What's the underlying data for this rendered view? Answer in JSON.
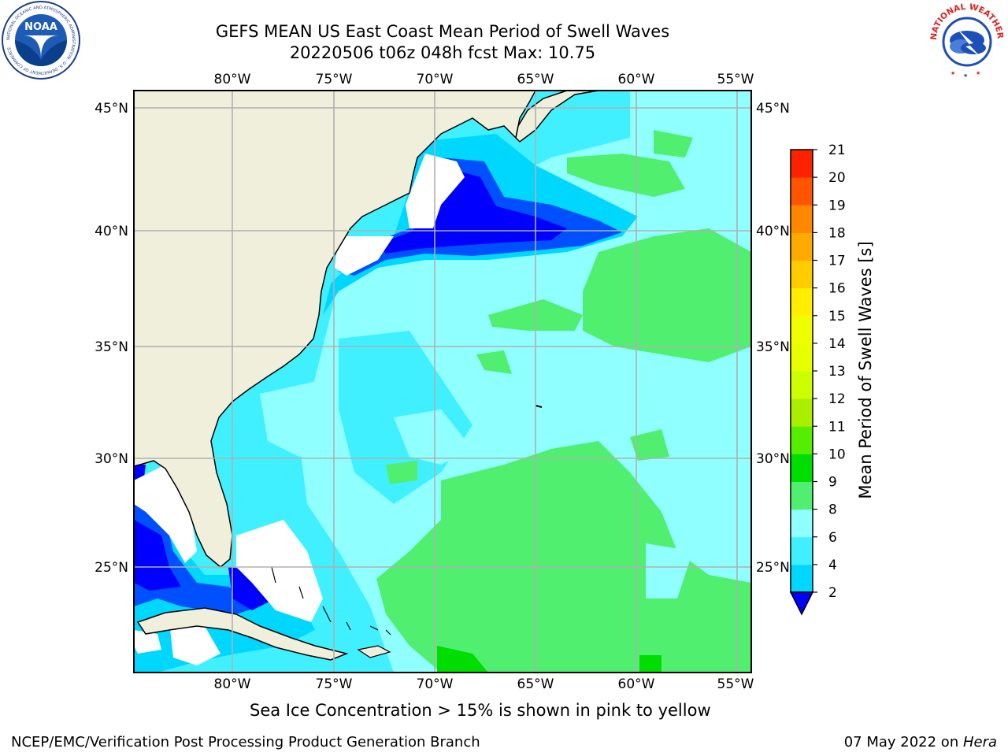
{
  "header": {
    "title_line1": "GEFS MEAN US East Coast Mean Period of Swell Waves",
    "title_line2": "20220506 t06z 048h fcst   Max: 10.75"
  },
  "logos": {
    "left": "NOAA",
    "left_ring": "NATIONAL OCEANIC AND ATMOSPHERIC ADMINISTRATION · U.S. DEPARTMENT OF COMMERCE",
    "right_ring": "NATIONAL WEATHER SERVICE"
  },
  "map": {
    "lon_labels": [
      "80°W",
      "75°W",
      "70°W",
      "65°W",
      "60°W",
      "55°W"
    ],
    "lat_labels": [
      "45°N",
      "40°N",
      "35°N",
      "30°N",
      "25°N"
    ],
    "colors": {
      "land": "#efefdc",
      "nodata": "#ffffff",
      "grid": "#b0b0b0"
    }
  },
  "colorbar": {
    "label": "Mean Period of Swell Waves [s]",
    "ticks": [
      "2",
      "4",
      "6",
      "8",
      "9",
      "10",
      "11",
      "12",
      "13",
      "14",
      "15",
      "16",
      "17",
      "18",
      "19",
      "20",
      "21"
    ],
    "colors": [
      "#0050ff",
      "#00d7ff",
      "#40f0ff",
      "#90ffff",
      "#50ef70",
      "#00dd00",
      "#55ee00",
      "#aaee00",
      "#ccff00",
      "#e8ff00",
      "#f0ff00",
      "#ffee00",
      "#ffcc00",
      "#ffaa00",
      "#ff8800",
      "#ff5500",
      "#ff2200",
      "#ff0000"
    ],
    "under_color": "#0000ff"
  },
  "footer": {
    "ice_note": "Sea Ice Concentration > 15% is shown in pink to yellow",
    "credit": "NCEP/EMC/Verification Post Processing Product Generation Branch",
    "date_prefix": "07 May 2022 on ",
    "date_machine": "Hera"
  }
}
